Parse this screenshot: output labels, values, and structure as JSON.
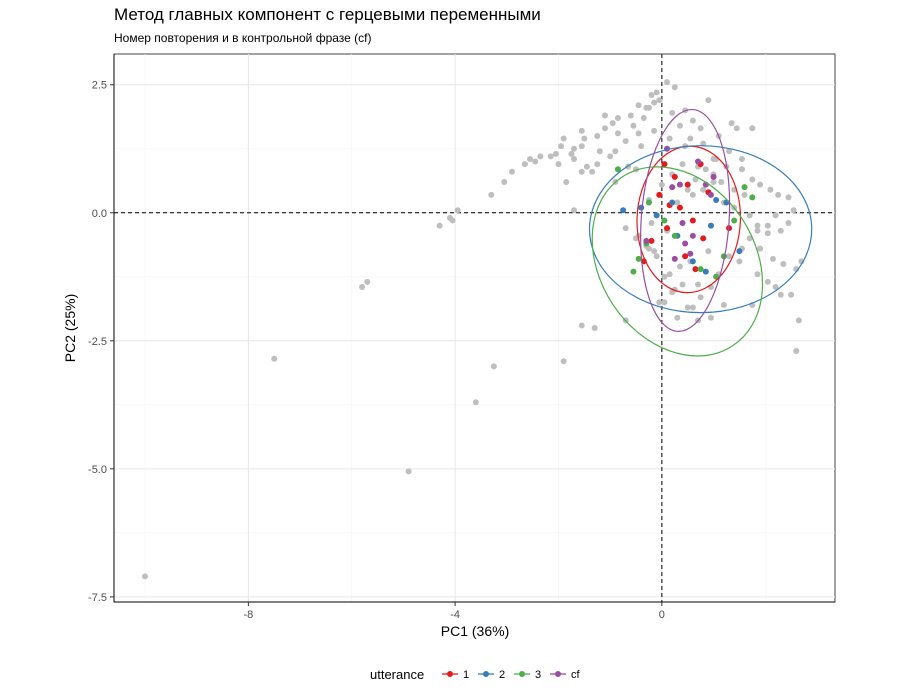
{
  "chart_data": {
    "type": "scatter",
    "title": "Метод главных компонент с герцевыми переменными",
    "subtitle": "Номер повторения и в контрольной фразе (cf)",
    "xlabel": "PC1 (36%)",
    "ylabel": "PC2 (25%)",
    "xlim": [
      -10.6,
      3.35
    ],
    "ylim": [
      -7.6,
      3.1
    ],
    "x_ticks": [
      -8,
      -4,
      0
    ],
    "x_tick_labels": [
      "-8",
      "-4",
      "0"
    ],
    "y_ticks": [
      2.5,
      0.0,
      -2.5,
      -5.0,
      -7.5
    ],
    "y_tick_labels": [
      "2.5",
      "0.0",
      "-2.5",
      "-5.0",
      "-7.5"
    ],
    "grid": true,
    "reference_lines": {
      "x": 0,
      "y": 0,
      "style": "dashed"
    },
    "background_points": {
      "color": "#bebebe",
      "x": [
        -10.0,
        -7.5,
        -4.9,
        -3.6,
        -3.25,
        -1.9,
        -5.8,
        -5.7,
        -4.3,
        -2.55,
        -2.35,
        -1.7,
        -1.55,
        -1.25,
        -1.55,
        -1.1,
        -0.85,
        -1.45,
        -0.5,
        -1.35,
        -1.85,
        -0.9,
        -1.7,
        -2.05,
        -0.25,
        -4.1,
        -4.05,
        -3.95,
        -3.3,
        -3.05,
        -2.9,
        -2.65,
        -2.45,
        -2.15,
        -2.0,
        -1.75,
        -1.95,
        -1.5,
        -1.9,
        -1.7,
        -1.55,
        -1.25,
        -1.0,
        -0.7,
        -0.45,
        -0.35,
        -0.25,
        -0.15,
        -0.05,
        -0.55,
        -0.4,
        -0.65,
        -0.85,
        -0.95,
        -0.15,
        -0.6,
        -0.2,
        -0.3,
        -0.9,
        -1.1,
        -1.2,
        -0.45,
        -0.1,
        0.1,
        0.25,
        0.45,
        0.6,
        0.75,
        0.9,
        1.1,
        1.35,
        1.45,
        1.75,
        0.2,
        0.35,
        0.55,
        0.8,
        1.05,
        1.25,
        1.55,
        1.75,
        1.9,
        2.1,
        2.25,
        2.45,
        2.55,
        2.2,
        2.05,
        1.85,
        1.7,
        1.55,
        1.9,
        2.15,
        2.35,
        2.6,
        2.7,
        2.5,
        2.3,
        2.2,
        2.05,
        1.85,
        1.5,
        1.3,
        1.1,
        0.95,
        0.75,
        0.6,
        0.4,
        0.2,
        0.05,
        -0.1,
        -0.3,
        -0.5,
        -0.7,
        0.1,
        0.3,
        0.5,
        0.65,
        0.85,
        1.0,
        1.2,
        1.4,
        1.6,
        0.15,
        0.35,
        0.55,
        0.7,
        0.9,
        0.0,
        0.2,
        0.4,
        0.6,
        0.8,
        1.0,
        1.15,
        1.4,
        1.7,
        1.85,
        2.05,
        2.3,
        0.15,
        0.45,
        0.7,
        1.0,
        1.3,
        1.55,
        1.75,
        -0.2,
        -0.45,
        0.05,
        0.25,
        -0.05,
        0.3,
        -0.15,
        0.5,
        0.7,
        0.95,
        1.2,
        -0.25,
        2.6,
        2.65,
        2.45,
        -1.55,
        -1.3,
        -0.7
      ],
      "y": [
        -7.1,
        -2.85,
        -5.05,
        -3.7,
        -3.0,
        -2.9,
        -1.45,
        -1.35,
        -0.25,
        1.05,
        1.1,
        1.25,
        1.3,
        1.5,
        1.6,
        1.9,
        1.85,
        0.9,
        0.85,
        0.8,
        0.6,
        0.6,
        0.05,
        1.15,
        0.25,
        -0.1,
        -0.15,
        0.05,
        0.35,
        0.6,
        0.8,
        0.95,
        1.0,
        1.1,
        0.95,
        1.15,
        1.3,
        1.45,
        1.45,
        1.05,
        0.8,
        0.95,
        1.1,
        1.4,
        1.55,
        1.85,
        2.05,
        2.15,
        2.2,
        1.7,
        1.3,
        0.9,
        1.55,
        1.75,
        1.6,
        1.9,
        2.3,
        2.05,
        1.2,
        1.65,
        1.2,
        2.1,
        2.35,
        2.55,
        2.45,
        2.0,
        1.8,
        1.65,
        2.2,
        1.5,
        1.75,
        1.65,
        1.65,
        1.95,
        1.7,
        1.45,
        1.35,
        1.05,
        0.9,
        0.85,
        0.65,
        0.55,
        0.45,
        0.35,
        0.3,
        0.05,
        -0.05,
        -0.25,
        -0.35,
        -0.5,
        -0.7,
        -0.7,
        -0.9,
        -1.0,
        -1.1,
        -0.95,
        -1.6,
        -1.6,
        -1.45,
        -1.35,
        -1.2,
        -0.95,
        -0.85,
        -1.2,
        -1.45,
        -1.65,
        -1.85,
        -1.4,
        -1.55,
        -1.75,
        -0.85,
        -0.65,
        -0.5,
        -0.3,
        -0.35,
        0.2,
        0.45,
        0.65,
        0.85,
        1.05,
        0.2,
        0.1,
        0.35,
        -1.2,
        -1.05,
        -0.95,
        -1.4,
        -0.75,
        0.55,
        0.75,
        0.95,
        0.35,
        0.45,
        0.75,
        0.6,
        0.45,
        -0.05,
        -0.25,
        -0.4,
        -0.35,
        1.45,
        1.3,
        0.9,
        0.6,
        1.2,
        1.05,
        -1.8,
        -0.2,
        -0.45,
        -1.25,
        -1.5,
        -1.75,
        -2.05,
        -0.75,
        -1.85,
        -2.1,
        -2.05,
        -1.8,
        -0.7,
        -2.7,
        -2.1,
        -0.2,
        -2.2,
        -2.25,
        -2.1
      ]
    },
    "series": [
      {
        "name": "1",
        "color": "#e41a1c",
        "x": [
          0.05,
          0.25,
          0.5,
          0.75,
          0.9,
          0.35,
          0.6,
          0.1,
          -0.2,
          0.8,
          -0.35,
          0.45,
          -0.05,
          1.3,
          0.15,
          0.65
        ],
        "y": [
          0.95,
          0.7,
          0.55,
          0.95,
          0.4,
          0.1,
          -0.15,
          -0.3,
          -0.55,
          -0.5,
          -0.95,
          -0.85,
          0.35,
          -0.3,
          0.15,
          -1.1
        ],
        "ellipse": {
          "cx": 0.52,
          "cy": -0.13,
          "rx": 1.0,
          "ry": 1.43,
          "angle_deg": 2
        }
      },
      {
        "name": "2",
        "color": "#377eb8",
        "x": [
          -0.4,
          0.2,
          1.05,
          -0.75,
          0.95,
          1.25,
          0.3,
          -0.1,
          0.6,
          1.5,
          0.85
        ],
        "y": [
          0.1,
          0.2,
          0.25,
          0.05,
          -0.25,
          0.2,
          -0.45,
          -0.05,
          -0.95,
          -0.75,
          -1.15
        ],
        "ellipse": {
          "cx": 0.75,
          "cy": -0.32,
          "rx": 2.15,
          "ry": 1.63,
          "angle_deg": 0
        }
      },
      {
        "name": "3",
        "color": "#4daf4a",
        "x": [
          -0.25,
          -0.3,
          -0.45,
          -0.55,
          1.4,
          1.6,
          1.2,
          0.75,
          0.25,
          1.75,
          0.05,
          -0.85,
          1.05
        ],
        "y": [
          0.2,
          -0.6,
          -0.9,
          -1.15,
          -0.15,
          0.5,
          -0.85,
          -1.1,
          -0.45,
          0.3,
          -0.15,
          0.85,
          -1.25
        ],
        "ellipse": {
          "cx": 0.3,
          "cy": -0.95,
          "rx": 1.5,
          "ry": 1.97,
          "angle_deg": -33
        }
      },
      {
        "name": "cf",
        "color": "#984ea3",
        "x": [
          0.1,
          0.2,
          0.35,
          0.45,
          0.6,
          0.85,
          1.0,
          0.7,
          0.25,
          0.55,
          0.95,
          -0.3,
          0.4
        ],
        "y": [
          1.25,
          0.5,
          0.55,
          -0.6,
          -0.45,
          0.55,
          0.7,
          1.0,
          -0.9,
          -0.8,
          0.35,
          -0.55,
          -0.2
        ],
        "ellipse": {
          "cx": 0.45,
          "cy": -0.15,
          "rx": 0.85,
          "ry": 2.17,
          "angle_deg": 4
        }
      }
    ],
    "legend": {
      "title": "utterance",
      "position": "bottom",
      "items": [
        "1",
        "2",
        "3",
        "cf"
      ]
    }
  }
}
